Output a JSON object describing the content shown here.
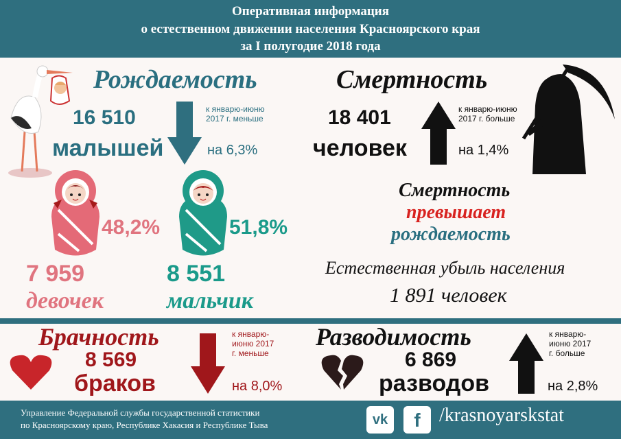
{
  "header": {
    "line1": "Оперативная информация",
    "line2": "о естественном движении населения Красноярского края",
    "line3": "за I полугодие 2018 года"
  },
  "birth": {
    "title": "Рождаемость",
    "count": "16 510",
    "unit": "малышей",
    "compare": "к январю-июню 2017 г. меньше",
    "change": "на 6,3%",
    "girls_pct": "48,2%",
    "boys_pct": "51,8%",
    "girls_count": "7 959",
    "girls_label": "девочек",
    "boys_count": "8 551",
    "boys_label": "мальчик"
  },
  "death": {
    "title": "Смертность",
    "count": "18 401",
    "unit": "человек",
    "compare": "к январю-июню 2017 г. больше",
    "change": "на 1,4%"
  },
  "summary": {
    "line1": "Смертность",
    "line2": "превышает",
    "line3": "рождаемость",
    "decline_label": "Естественная убыль населения",
    "decline_value": "1 891 человек"
  },
  "marriage": {
    "title": "Брачность",
    "count": "8 569",
    "unit": "браков",
    "compare": "к январю-июню 2017 г. меньше",
    "change": "на 8,0%"
  },
  "divorce": {
    "title": "Разводимость",
    "count": "6 869",
    "unit": "разводов",
    "compare": "к январю-июню 2017 г. больше",
    "change": "на 2,8%"
  },
  "footer": {
    "line1": "Управление Федеральной службы государственной статистики",
    "line2": "по Красноярскому краю, Республике Хакасия и Республике Тыва",
    "handle": "/krasnoyarskstat",
    "vk": "vk",
    "fb": "f"
  },
  "colors": {
    "header": "#2f6f7f",
    "teal": "#2a6f80",
    "pink": "#e0747f",
    "green": "#1a9a8a",
    "red": "#a0171b"
  },
  "icons": [
    "stork-icon",
    "arrow-down-icon",
    "arrow-up-icon",
    "girl-baby-icon",
    "boy-baby-icon",
    "grim-reaper-icon",
    "heart-icon",
    "broken-heart-icon",
    "vk-icon",
    "facebook-icon"
  ]
}
